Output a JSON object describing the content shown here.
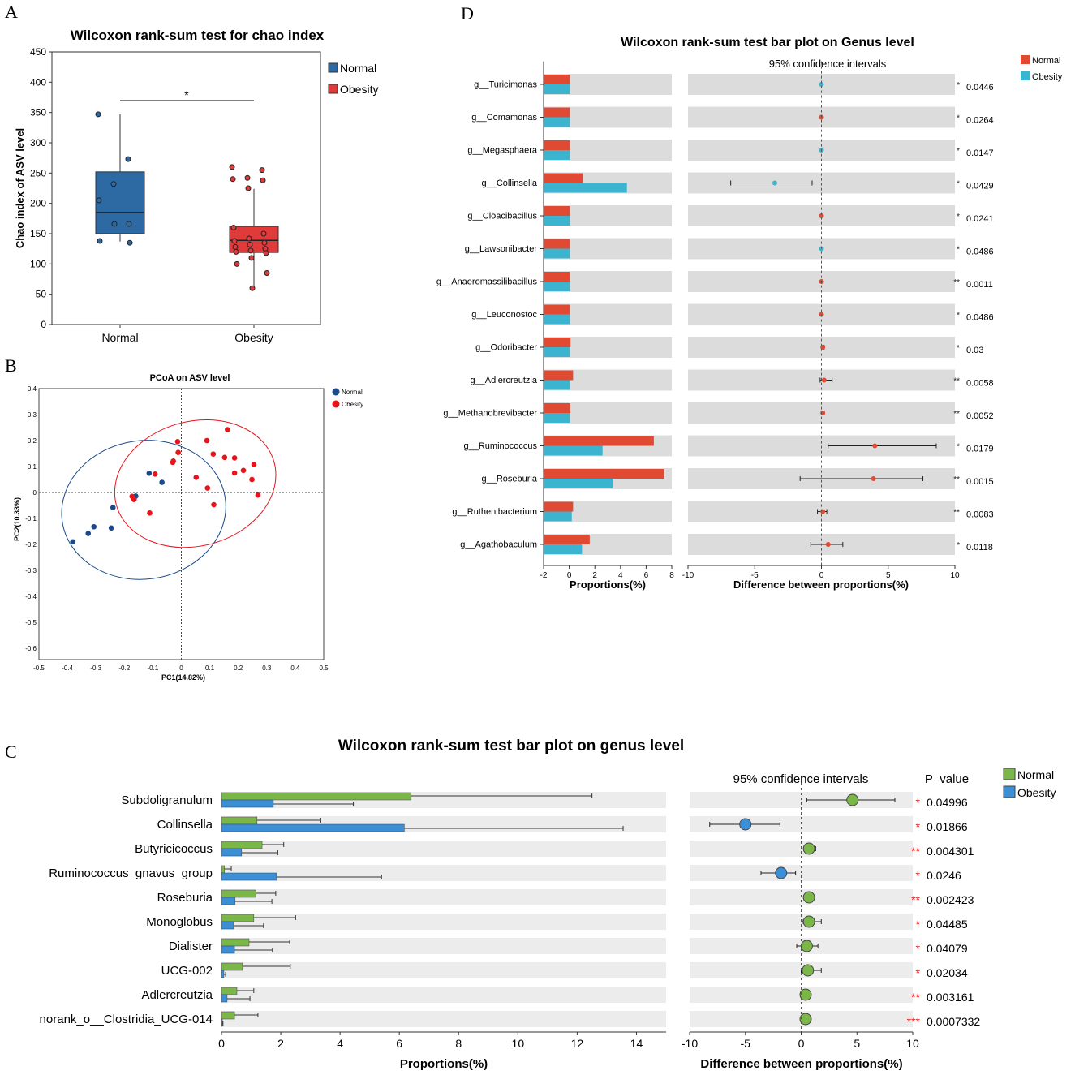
{
  "panel_letters": [
    "A",
    "B",
    "D",
    "C"
  ],
  "chart_data": [
    {
      "type": "box",
      "panel": "A",
      "title": "Wilcoxon rank-sum test for chao index",
      "ylabel": "Chao index of ASV level",
      "ylim": [
        0,
        450
      ],
      "yticks": [
        "0",
        "50",
        "100",
        "150",
        "200",
        "250",
        "300",
        "350",
        "400",
        "450"
      ],
      "categories": [
        "Normal",
        "Obesity"
      ],
      "significance": "*",
      "legend": [
        {
          "name": "Normal",
          "color": "#2d6aa3"
        },
        {
          "name": "Obesity",
          "color": "#e03a3a"
        }
      ],
      "boxes": [
        {
          "name": "Normal",
          "q1": 150,
          "median": 185,
          "q3": 252,
          "whisker_low": 137,
          "whisker_high": 347,
          "points": [
            347,
            273,
            232,
            205,
            166,
            166,
            138,
            135
          ]
        },
        {
          "name": "Obesity",
          "q1": 119,
          "median": 139,
          "q3": 162,
          "whisker_low": 59,
          "whisker_high": 224,
          "points": [
            260,
            255,
            242,
            240,
            238,
            225,
            160,
            150,
            142,
            138,
            135,
            132,
            128,
            125,
            122,
            120,
            118,
            110,
            100,
            85,
            60
          ]
        }
      ]
    },
    {
      "type": "scatter",
      "panel": "B",
      "title": "PCoA on ASV level",
      "xlabel": "PC1(14.82%)",
      "ylabel": "PC2(10.33%)",
      "xlim": [
        -0.5,
        0.5
      ],
      "ylim": [
        -0.6,
        0.4
      ],
      "xticks": [
        "-0.5",
        "-0.4",
        "-0.3",
        "-0.2",
        "-0.1",
        "0",
        "0.1",
        "0.2",
        "0.3",
        "0.4",
        "0.5"
      ],
      "yticks": [
        "0.4",
        "0.3",
        "0.2",
        "0.1",
        "0",
        "-0.1",
        "-0.2",
        "-0.3",
        "-0.4",
        "-0.5",
        "-0.6"
      ],
      "series": [
        {
          "name": "Normal",
          "color": "#1a4a8a",
          "ellipse": {
            "cx": -0.132,
            "cy": -0.067,
            "rx": 0.289,
            "ry": 0.267
          },
          "points": [
            [
              -0.113,
              0.074
            ],
            [
              -0.068,
              0.039
            ],
            [
              -0.16,
              -0.014
            ],
            [
              -0.24,
              -0.058
            ],
            [
              -0.307,
              -0.132
            ],
            [
              -0.327,
              -0.158
            ],
            [
              -0.246,
              -0.137
            ],
            [
              -0.381,
              -0.19
            ]
          ]
        },
        {
          "name": "Obesity",
          "color": "#e8141c",
          "ellipse": {
            "cx": 0.049,
            "cy": 0.034,
            "rx": 0.287,
            "ry": 0.24
          },
          "points": [
            [
              0.162,
              0.242
            ],
            [
              -0.013,
              0.196
            ],
            [
              0.09,
              0.2
            ],
            [
              -0.011,
              0.154
            ],
            [
              0.112,
              0.148
            ],
            [
              0.152,
              0.135
            ],
            [
              0.187,
              0.133
            ],
            [
              -0.028,
              0.121
            ],
            [
              -0.03,
              0.116
            ],
            [
              0.255,
              0.108
            ],
            [
              0.218,
              0.085
            ],
            [
              0.187,
              0.075
            ],
            [
              -0.092,
              0.071
            ],
            [
              0.052,
              0.058
            ],
            [
              0.248,
              0.05
            ],
            [
              0.092,
              0.017
            ],
            [
              0.269,
              -0.01
            ],
            [
              -0.173,
              -0.015
            ],
            [
              -0.166,
              -0.027
            ],
            [
              0.114,
              -0.047
            ],
            [
              -0.111,
              -0.079
            ]
          ]
        }
      ]
    },
    {
      "type": "bar",
      "panel": "D",
      "title": "Wilcoxon rank-sum test bar plot on Genus level",
      "ci_title": "95% confidence intervals",
      "xlabel_left": "Proportions(%)",
      "xlabel_right": "Difference between proportions(%)",
      "xlim_left": [
        -2,
        8
      ],
      "xticks_left": [
        "-2",
        "0",
        "2",
        "4",
        "6",
        "8"
      ],
      "xlim_right": [
        -10,
        10
      ],
      "xticks_right": [
        "-10",
        "-5",
        "0",
        "5",
        "10"
      ],
      "legend": [
        {
          "name": "Normal",
          "color": "#e04a33"
        },
        {
          "name": "Obesity",
          "color": "#3cb4cf"
        }
      ],
      "rows": [
        {
          "name": "g__Turicimonas",
          "normal": 0.05,
          "obesity": 0.05,
          "diff": 0,
          "ci": [
            0,
            0
          ],
          "winner": "obesity",
          "stars": "*",
          "p": "0.0446"
        },
        {
          "name": "g__Comamonas",
          "normal": 0.05,
          "obesity": 0.05,
          "diff": 0,
          "ci": [
            0,
            0
          ],
          "winner": "normal",
          "stars": "*",
          "p": "0.0264"
        },
        {
          "name": "g__Megasphaera",
          "normal": 0.05,
          "obesity": 0.05,
          "diff": 0,
          "ci": [
            -0.05,
            0.05
          ],
          "winner": "obesity",
          "stars": "*",
          "p": "0.0147"
        },
        {
          "name": "g__Collinsella",
          "normal": 1.06,
          "obesity": 4.5,
          "diff": -3.5,
          "ci": [
            -6.8,
            -0.7
          ],
          "winner": "obesity",
          "stars": "*",
          "p": "0.0429"
        },
        {
          "name": "g__Cloacibacillus",
          "normal": 0.05,
          "obesity": 0.05,
          "diff": 0,
          "ci": [
            0,
            0
          ],
          "winner": "normal",
          "stars": "*",
          "p": "0.0241"
        },
        {
          "name": "g__Lawsonibacter",
          "normal": 0.05,
          "obesity": 0.05,
          "diff": 0,
          "ci": [
            0,
            0
          ],
          "winner": "obesity",
          "stars": "*",
          "p": "0.0486"
        },
        {
          "name": "g__Anaeromassilibacillus",
          "normal": 0.05,
          "obesity": 0.05,
          "diff": 0,
          "ci": [
            0,
            0
          ],
          "winner": "normal",
          "stars": "**",
          "p": "0.0011"
        },
        {
          "name": "g__Leuconostoc",
          "normal": 0.05,
          "obesity": 0.05,
          "diff": 0,
          "ci": [
            0,
            0
          ],
          "winner": "normal",
          "stars": "*",
          "p": "0.0486"
        },
        {
          "name": "g__Odoribacter",
          "normal": 0.1,
          "obesity": 0.05,
          "diff": 0.1,
          "ci": [
            0,
            0.2
          ],
          "winner": "normal",
          "stars": "*",
          "p": "0.03"
        },
        {
          "name": "g__Adlercreutzia",
          "normal": 0.3,
          "obesity": 0.05,
          "diff": 0.2,
          "ci": [
            -0.1,
            0.8
          ],
          "winner": "normal",
          "stars": "**",
          "p": "0.0058"
        },
        {
          "name": "g__Methanobrevibacter",
          "normal": 0.08,
          "obesity": 0.05,
          "diff": 0.1,
          "ci": [
            0,
            0.2
          ],
          "winner": "normal",
          "stars": "**",
          "p": "0.0052"
        },
        {
          "name": "g__Ruminococcus",
          "normal": 6.6,
          "obesity": 2.6,
          "diff": 4.0,
          "ci": [
            0.5,
            8.6
          ],
          "winner": "normal",
          "stars": "*",
          "p": "0.0179"
        },
        {
          "name": "g__Roseburia",
          "normal": 7.4,
          "obesity": 3.4,
          "diff": 3.9,
          "ci": [
            -1.6,
            7.6
          ],
          "winner": "normal",
          "stars": "**",
          "p": "0.0015"
        },
        {
          "name": "g__Ruthenibacterium",
          "normal": 0.3,
          "obesity": 0.2,
          "diff": 0.1,
          "ci": [
            -0.3,
            0.4
          ],
          "winner": "normal",
          "stars": "**",
          "p": "0.0083"
        },
        {
          "name": "g__Agathobaculum",
          "normal": 1.6,
          "obesity": 1.0,
          "diff": 0.5,
          "ci": [
            -0.8,
            1.6
          ],
          "winner": "normal",
          "stars": "*",
          "p": "0.0118"
        }
      ]
    },
    {
      "type": "bar",
      "panel": "C",
      "title": "Wilcoxon rank-sum test bar plot on genus level",
      "ci_title": "95% confidence intervals",
      "p_title": "P_value",
      "xlabel_left": "Proportions(%)",
      "xlabel_right": "Difference between proportions(%)",
      "xlim_left": [
        0,
        15
      ],
      "xticks_left": [
        "0",
        "2",
        "4",
        "6",
        "8",
        "10",
        "12",
        "14"
      ],
      "xlim_right": [
        -10,
        10
      ],
      "xticks_right": [
        "-10",
        "-5",
        "0",
        "5",
        "10"
      ],
      "legend": [
        {
          "name": "Normal",
          "color": "#7ab648"
        },
        {
          "name": "Obesity",
          "color": "#3a8fd6"
        }
      ],
      "rows": [
        {
          "name": "Subdoligranulum",
          "normal": 6.4,
          "normal_err": 12.5,
          "obesity": 1.75,
          "obesity_err": 4.45,
          "diff": 4.6,
          "ci": [
            0.5,
            8.4
          ],
          "winner": "normal",
          "stars": "*",
          "p": "0.04996"
        },
        {
          "name": "Collinsella",
          "normal": 1.2,
          "normal_err": 3.35,
          "obesity": 6.17,
          "obesity_err": 13.55,
          "diff": -5.0,
          "ci": [
            -8.2,
            -1.9
          ],
          "winner": "obesity",
          "stars": "*",
          "p": "0.01866"
        },
        {
          "name": "Butyricicoccus",
          "normal": 1.37,
          "normal_err": 2.1,
          "obesity": 0.68,
          "obesity_err": 1.9,
          "diff": 0.7,
          "ci": [
            0.5,
            1.3
          ],
          "winner": "normal",
          "stars": "**",
          "p": "0.004301"
        },
        {
          "name": "Ruminococcus_gnavus_group",
          "normal": 0.1,
          "normal_err": 0.33,
          "obesity": 1.86,
          "obesity_err": 5.4,
          "diff": -1.8,
          "ci": [
            -3.6,
            -0.5
          ],
          "winner": "obesity",
          "stars": "*",
          "p": "0.0246"
        },
        {
          "name": "Roseburia",
          "normal": 1.17,
          "normal_err": 1.83,
          "obesity": 0.46,
          "obesity_err": 1.7,
          "diff": 0.7,
          "ci": [
            0.5,
            1.2
          ],
          "winner": "normal",
          "stars": "**",
          "p": "0.002423"
        },
        {
          "name": "Monoglobus",
          "normal": 1.09,
          "normal_err": 2.5,
          "obesity": 0.41,
          "obesity_err": 1.42,
          "diff": 0.7,
          "ci": [
            0.1,
            1.8
          ],
          "winner": "normal",
          "stars": "*",
          "p": "0.04485"
        },
        {
          "name": "Dialister",
          "normal": 0.93,
          "normal_err": 2.3,
          "obesity": 0.44,
          "obesity_err": 1.72,
          "diff": 0.5,
          "ci": [
            -0.4,
            1.5
          ],
          "winner": "normal",
          "stars": "*",
          "p": "0.04079"
        },
        {
          "name": "UCG-002",
          "normal": 0.71,
          "normal_err": 2.32,
          "obesity": 0.08,
          "obesity_err": 0.14,
          "diff": 0.6,
          "ci": [
            0.0,
            1.8
          ],
          "winner": "normal",
          "stars": "*",
          "p": "0.02034"
        },
        {
          "name": "Adlercreutzia",
          "normal": 0.52,
          "normal_err": 1.09,
          "obesity": 0.19,
          "obesity_err": 0.96,
          "diff": 0.4,
          "ci": [
            0.3,
            0.6
          ],
          "winner": "normal",
          "stars": "**",
          "p": "0.003161"
        },
        {
          "name": "norank_o__Clostridia_UCG-014",
          "normal": 0.44,
          "normal_err": 1.23,
          "obesity": 0.03,
          "obesity_err": 0.05,
          "diff": 0.4,
          "ci": [
            0.2,
            0.8
          ],
          "winner": "normal",
          "stars": "***",
          "p": "0.0007332"
        }
      ]
    }
  ]
}
